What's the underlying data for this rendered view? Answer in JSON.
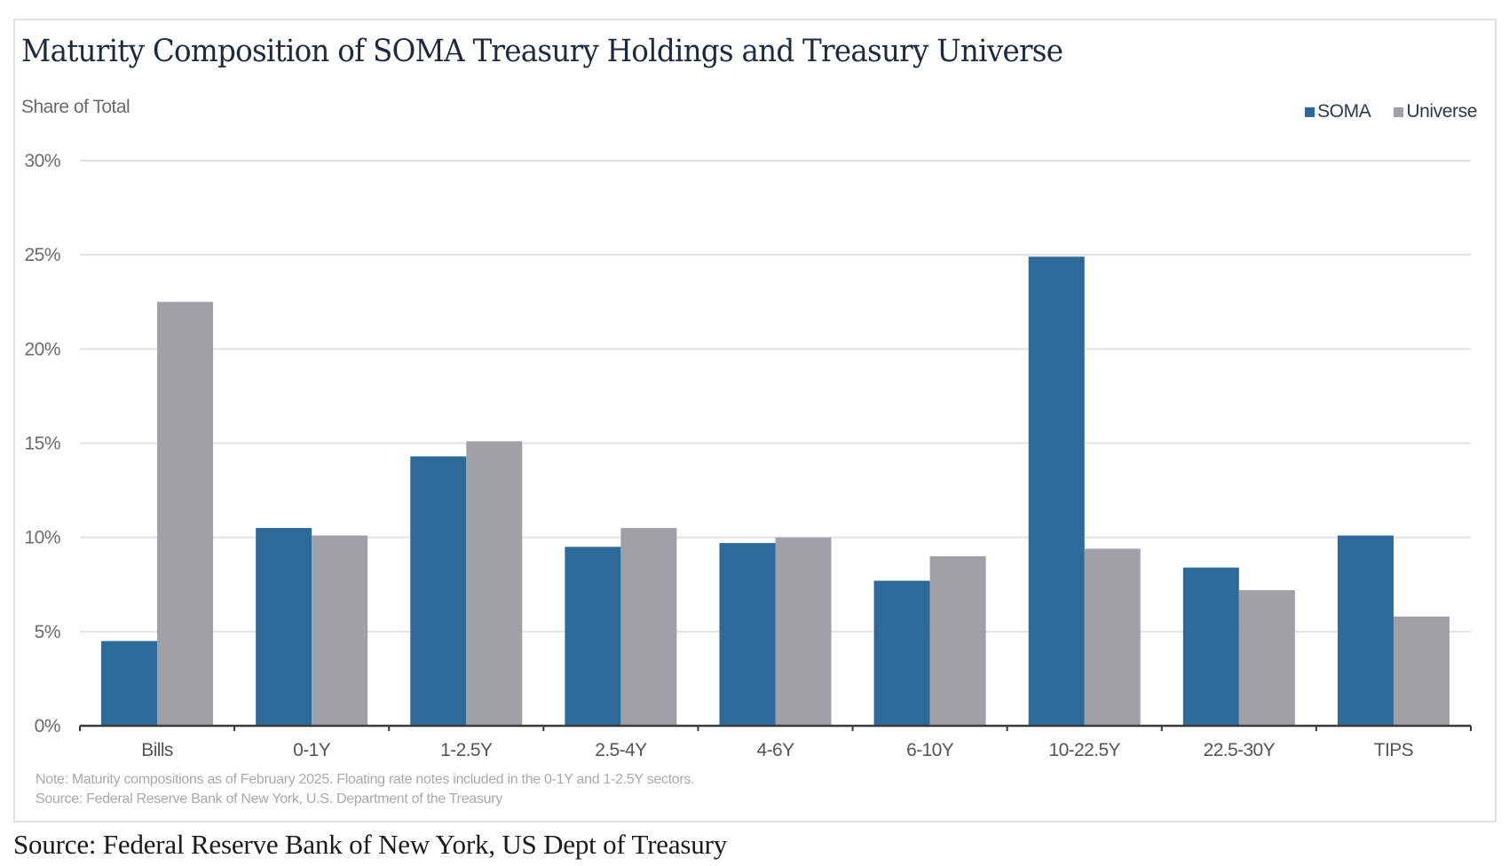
{
  "chart_data": {
    "type": "bar",
    "title": "Maturity Composition of SOMA Treasury Holdings and Treasury Universe",
    "ylabel": "Share of Total",
    "xlabel": "",
    "categories": [
      "Bills",
      "0-1Y",
      "1-2.5Y",
      "2.5-4Y",
      "4-6Y",
      "6-10Y",
      "10-22.5Y",
      "22.5-30Y",
      "TIPS"
    ],
    "series": [
      {
        "name": "SOMA",
        "color": "#2e6a99",
        "values": [
          4.5,
          10.5,
          14.3,
          9.5,
          9.7,
          7.7,
          24.9,
          8.4,
          10.1
        ]
      },
      {
        "name": "Universe",
        "color": "#a0a1a6",
        "values": [
          22.5,
          10.1,
          15.1,
          10.5,
          10.0,
          9.0,
          9.4,
          7.2,
          5.8
        ]
      }
    ],
    "ylim": [
      0,
      30
    ],
    "yticks": [
      0,
      5,
      10,
      15,
      20,
      25,
      30
    ],
    "ytick_labels": [
      "0%",
      "5%",
      "10%",
      "15%",
      "20%",
      "25%",
      "30%"
    ],
    "grid": true,
    "legend_position": "top-right",
    "unit": "%"
  },
  "notes": {
    "note": "Note: Maturity compositions as of February 2025. Floating rate notes included in the 0-1Y and 1-2.5Y sectors.",
    "source": "Source: Federal Reserve Bank of New York, U.S. Department of the Treasury"
  },
  "caption": "Source: Federal Reserve Bank of New York, US Dept of Treasury"
}
